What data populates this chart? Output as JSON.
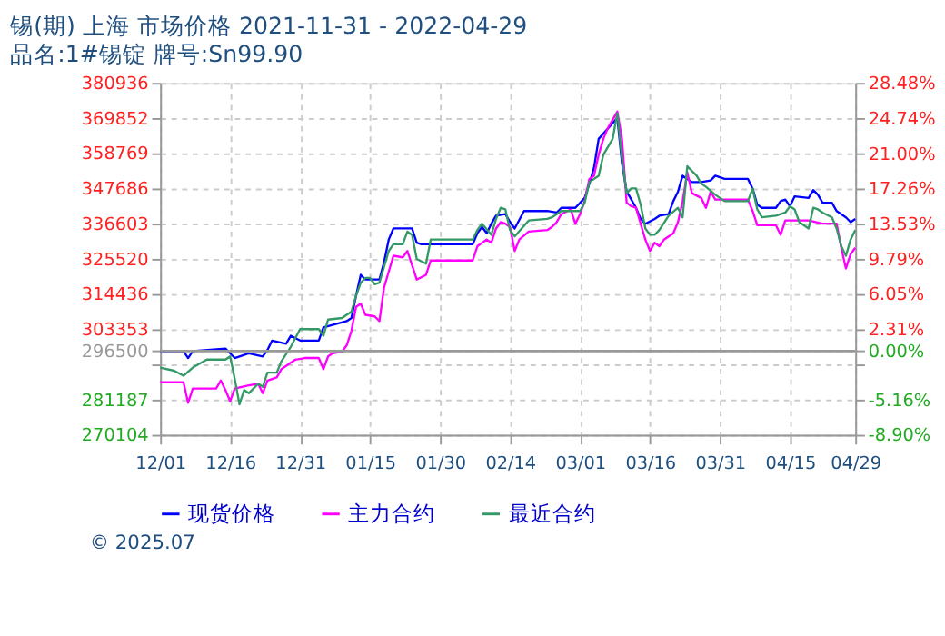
{
  "chart_data": {
    "type": "line",
    "title": "锡(期) 上海 市场价格 2021-11-31 - 2022-04-29",
    "subtitle": "品名:1#锡锭 牌号:Sn99.90",
    "annotations": [
      "© 2025.07"
    ],
    "xlim": [
      "2021-12-01",
      "2022-04-29"
    ],
    "xticks": [
      {
        "value": "2021-12-01",
        "label": "12/01"
      },
      {
        "value": "2021-12-16",
        "label": "12/16"
      },
      {
        "value": "2021-12-31",
        "label": "12/31"
      },
      {
        "value": "2022-01-15",
        "label": "01/15"
      },
      {
        "value": "2022-01-30",
        "label": "01/30"
      },
      {
        "value": "2022-02-14",
        "label": "02/14"
      },
      {
        "value": "2022-03-01",
        "label": "03/01"
      },
      {
        "value": "2022-03-16",
        "label": "03/16"
      },
      {
        "value": "2022-03-31",
        "label": "03/31"
      },
      {
        "value": "2022-04-15",
        "label": "04/15"
      },
      {
        "value": "2022-04-29",
        "label": "04/29"
      }
    ],
    "ylim": [
      270104,
      380936
    ],
    "yticks": [
      270104,
      281187,
      {
        "value": 292270,
        "label": null
      },
      296500,
      303353,
      314436,
      325520,
      336603,
      347686,
      358769,
      369852,
      380936
    ],
    "y2lim": [
      -8.9,
      28.48
    ],
    "y2ticks": [
      {
        "value": -8.9,
        "label": "-8.90%"
      },
      {
        "value": -5.16,
        "label": "-5.16%"
      },
      {
        "value": -1.43,
        "label": null
      },
      {
        "value": 0,
        "label": "0.00%"
      },
      {
        "value": 2.31,
        "label": "2.31%"
      },
      {
        "value": 6.05,
        "label": "6.05%"
      },
      {
        "value": 9.79,
        "label": "9.79%"
      },
      {
        "value": 13.53,
        "label": "13.53%"
      },
      {
        "value": 17.26,
        "label": "17.26%"
      },
      {
        "value": 21.0,
        "label": "21.00%"
      },
      {
        "value": 24.74,
        "label": "24.74%"
      },
      {
        "value": 28.48,
        "label": "28.48%"
      }
    ],
    "ref_lines": [
      {
        "axis": "y",
        "value": 296500,
        "color": "#999999",
        "line_style": "solid"
      }
    ],
    "grid": true,
    "legend": "bottom",
    "marker": "none",
    "line_style": "solid",
    "series": [
      {
        "name": "现货价格",
        "color": "#0000ff",
        "x": [
          "2021-12-01",
          "2021-12-06",
          "2021-12-07",
          "2021-12-08",
          "2021-12-15",
          "2021-12-17",
          "2021-12-20",
          "2021-12-23",
          "2021-12-24",
          "2021-12-25",
          "2021-12-28",
          "2021-12-29",
          "2021-12-31",
          "2022-01-04",
          "2022-01-05",
          "2022-01-10",
          "2022-01-11",
          "2022-01-12",
          "2022-01-13",
          "2022-01-14",
          "2022-01-17",
          "2022-01-18",
          "2022-01-19",
          "2022-01-20",
          "2022-01-24",
          "2022-01-25",
          "2022-01-26",
          "2022-02-06",
          "2022-02-07",
          "2022-02-08",
          "2022-02-09",
          "2022-02-10",
          "2022-02-11",
          "2022-02-13",
          "2022-02-14",
          "2022-02-15",
          "2022-02-17",
          "2022-02-22",
          "2022-02-24",
          "2022-02-25",
          "2022-02-28",
          "2022-03-02",
          "2022-03-03",
          "2022-03-04",
          "2022-03-05",
          "2022-03-09",
          "2022-03-10",
          "2022-03-11",
          "2022-03-12",
          "2022-03-13",
          "2022-03-14",
          "2022-03-15",
          "2022-03-17",
          "2022-03-18",
          "2022-03-20",
          "2022-03-21",
          "2022-03-22",
          "2022-03-23",
          "2022-03-24",
          "2022-03-25",
          "2022-03-27",
          "2022-03-29",
          "2022-03-30",
          "2022-04-01",
          "2022-04-06",
          "2022-04-07",
          "2022-04-08",
          "2022-04-09",
          "2022-04-12",
          "2022-04-13",
          "2022-04-14",
          "2022-04-15",
          "2022-04-16",
          "2022-04-19",
          "2022-04-20",
          "2022-04-21",
          "2022-04-22",
          "2022-04-24",
          "2022-04-25",
          "2022-04-27",
          "2022-04-28",
          "2022-04-29"
        ],
        "values": [
          296400,
          296500,
          294300,
          296500,
          297300,
          294300,
          295800,
          294800,
          296800,
          299800,
          298800,
          301300,
          299800,
          299800,
          303900,
          305900,
          306900,
          313900,
          320500,
          319000,
          319000,
          324500,
          331600,
          335100,
          335100,
          330600,
          330100,
          330100,
          333600,
          335600,
          333600,
          336600,
          339100,
          339600,
          337100,
          335100,
          340600,
          340600,
          340100,
          341600,
          341600,
          344700,
          349200,
          354200,
          363300,
          369900,
          355700,
          346700,
          344200,
          341600,
          338100,
          336600,
          338100,
          339100,
          339600,
          343700,
          346700,
          351700,
          350700,
          349700,
          349700,
          350200,
          351700,
          350700,
          350700,
          347700,
          342600,
          341600,
          341600,
          343700,
          344200,
          342100,
          345200,
          344700,
          347200,
          345700,
          343200,
          343200,
          340600,
          338600,
          337100,
          338100
        ]
      },
      {
        "name": "主力合约",
        "color": "#ff00ff",
        "x": [
          "2021-12-01",
          "2021-12-06",
          "2021-12-07",
          "2021-12-08",
          "2021-12-13",
          "2021-12-14",
          "2021-12-15",
          "2021-12-16",
          "2021-12-17",
          "2021-12-20",
          "2021-12-22",
          "2021-12-23",
          "2021-12-24",
          "2021-12-26",
          "2021-12-27",
          "2021-12-30",
          "2022-01-01",
          "2022-01-04",
          "2022-01-05",
          "2022-01-06",
          "2022-01-07",
          "2022-01-09",
          "2022-01-10",
          "2022-01-11",
          "2022-01-12",
          "2022-01-13",
          "2022-01-14",
          "2022-01-16",
          "2022-01-17",
          "2022-01-18",
          "2022-01-19",
          "2022-01-20",
          "2022-01-22",
          "2022-01-23",
          "2022-01-24",
          "2022-01-25",
          "2022-01-27",
          "2022-01-28",
          "2022-02-06",
          "2022-02-07",
          "2022-02-09",
          "2022-02-10",
          "2022-02-11",
          "2022-02-12",
          "2022-02-13",
          "2022-02-14",
          "2022-02-15",
          "2022-02-16",
          "2022-02-18",
          "2022-02-22",
          "2022-02-23",
          "2022-02-24",
          "2022-02-25",
          "2022-02-27",
          "2022-02-28",
          "2022-03-01",
          "2022-03-02",
          "2022-03-03",
          "2022-03-04",
          "2022-03-05",
          "2022-03-06",
          "2022-03-07",
          "2022-03-09",
          "2022-03-10",
          "2022-03-11",
          "2022-03-12",
          "2022-03-13",
          "2022-03-14",
          "2022-03-15",
          "2022-03-16",
          "2022-03-17",
          "2022-03-18",
          "2022-03-19",
          "2022-03-21",
          "2022-03-22",
          "2022-03-23",
          "2022-03-24",
          "2022-03-25",
          "2022-03-27",
          "2022-03-28",
          "2022-03-29",
          "2022-03-30",
          "2022-04-06",
          "2022-04-07",
          "2022-04-08",
          "2022-04-12",
          "2022-04-13",
          "2022-04-14",
          "2022-04-19",
          "2022-04-22",
          "2022-04-25",
          "2022-04-26",
          "2022-04-27",
          "2022-04-28",
          "2022-04-29"
        ],
        "values": [
          286700,
          286700,
          280200,
          284700,
          284700,
          287200,
          284200,
          280700,
          284700,
          285700,
          286200,
          283200,
          287200,
          288200,
          290800,
          293800,
          294300,
          294300,
          290800,
          294800,
          295800,
          296300,
          298300,
          302800,
          310400,
          311400,
          307900,
          307400,
          305900,
          316500,
          321500,
          326500,
          326000,
          328000,
          323500,
          319000,
          320500,
          325000,
          325000,
          329500,
          331600,
          330600,
          335100,
          337100,
          336600,
          335600,
          328000,
          331600,
          334100,
          334600,
          335600,
          337100,
          339600,
          341100,
          336600,
          339600,
          343700,
          350700,
          351700,
          358300,
          363300,
          366800,
          371900,
          363300,
          343200,
          342100,
          341600,
          336600,
          331600,
          328000,
          330600,
          329500,
          331600,
          333600,
          337100,
          343700,
          352700,
          346200,
          344700,
          341600,
          346700,
          344200,
          344200,
          340600,
          336100,
          336100,
          333100,
          337600,
          337600,
          336600,
          336600,
          329000,
          322500,
          327000,
          329000
        ]
      },
      {
        "name": "最近合约",
        "color": "#339966",
        "x": [
          "2021-12-01",
          "2021-12-04",
          "2021-12-06",
          "2021-12-08",
          "2021-12-11",
          "2021-12-15",
          "2021-12-16",
          "2021-12-17",
          "2021-12-18",
          "2021-12-19",
          "2021-12-20",
          "2021-12-22",
          "2021-12-23",
          "2021-12-24",
          "2021-12-26",
          "2021-12-27",
          "2021-12-29",
          "2021-12-31",
          "2022-01-04",
          "2022-01-05",
          "2022-01-06",
          "2022-01-09",
          "2022-01-11",
          "2022-01-12",
          "2022-01-13",
          "2022-01-14",
          "2022-01-15",
          "2022-01-16",
          "2022-01-17",
          "2022-01-18",
          "2022-01-19",
          "2022-01-20",
          "2022-01-22",
          "2022-01-23",
          "2022-01-24",
          "2022-01-25",
          "2022-01-27",
          "2022-01-28",
          "2022-02-06",
          "2022-02-07",
          "2022-02-08",
          "2022-02-10",
          "2022-02-11",
          "2022-02-12",
          "2022-02-13",
          "2022-02-14",
          "2022-02-15",
          "2022-02-18",
          "2022-02-22",
          "2022-02-23",
          "2022-02-25",
          "2022-03-01",
          "2022-03-02",
          "2022-03-03",
          "2022-03-05",
          "2022-03-06",
          "2022-03-08",
          "2022-03-09",
          "2022-03-10",
          "2022-03-11",
          "2022-03-12",
          "2022-03-13",
          "2022-03-14",
          "2022-03-15",
          "2022-03-16",
          "2022-03-17",
          "2022-03-18",
          "2022-03-20",
          "2022-03-22",
          "2022-03-23",
          "2022-03-24",
          "2022-03-26",
          "2022-03-27",
          "2022-03-28",
          "2022-03-30",
          "2022-04-01",
          "2022-04-06",
          "2022-04-07",
          "2022-04-08",
          "2022-04-09",
          "2022-04-12",
          "2022-04-14",
          "2022-04-15",
          "2022-04-16",
          "2022-04-17",
          "2022-04-19",
          "2022-04-20",
          "2022-04-21",
          "2022-04-22",
          "2022-04-24",
          "2022-04-25",
          "2022-04-26",
          "2022-04-27",
          "2022-04-28",
          "2022-04-29"
        ],
        "values": [
          291300,
          290300,
          288700,
          291300,
          293800,
          293800,
          294800,
          287700,
          279700,
          284200,
          283200,
          286200,
          285200,
          289700,
          289700,
          293300,
          297800,
          303400,
          303400,
          301300,
          306400,
          306900,
          308900,
          313900,
          318000,
          319500,
          319500,
          317500,
          318000,
          323000,
          328000,
          330100,
          330100,
          334100,
          333100,
          325500,
          324000,
          331600,
          331600,
          334600,
          336600,
          333100,
          338100,
          341600,
          341100,
          334600,
          332600,
          337600,
          338100,
          338600,
          340600,
          340600,
          343200,
          349700,
          351700,
          358300,
          363300,
          371400,
          357300,
          346200,
          347700,
          347700,
          342600,
          335100,
          333100,
          333100,
          334600,
          339100,
          341600,
          338600,
          354700,
          351700,
          349200,
          348200,
          345700,
          343700,
          343700,
          347700,
          341100,
          338600,
          339100,
          340100,
          342100,
          341100,
          337100,
          335100,
          341600,
          341100,
          340100,
          338600,
          335100,
          329500,
          326500,
          331600,
          334600
        ]
      }
    ]
  }
}
